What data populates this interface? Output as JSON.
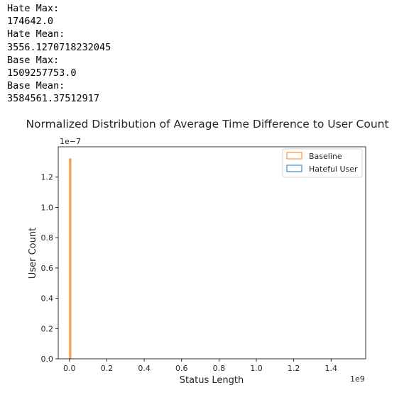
{
  "output": {
    "lines": [
      "Hate Max:",
      "174642.0",
      "Hate Mean:",
      "3556.1270718232045",
      "Base Max:",
      "1509257753.0",
      "Base Mean:",
      "3584561.37512917"
    ]
  },
  "chart_data": {
    "type": "histogram",
    "title": "Normalized Distribution of Average Time Difference to User Count",
    "xlabel": "Status Length",
    "ylabel": "User Count",
    "x_offset_label": "1e9",
    "y_offset_label": "1e−7",
    "xlim": [
      -0.06,
      1.585
    ],
    "ylim": [
      0,
      1.4
    ],
    "x_ticks": [
      0.0,
      0.2,
      0.4,
      0.6,
      0.8,
      1.0,
      1.2,
      1.4
    ],
    "x_tick_labels": [
      "0.0",
      "0.2",
      "0.4",
      "0.6",
      "0.8",
      "1.0",
      "1.2",
      "1.4"
    ],
    "y_ticks": [
      0.0,
      0.2,
      0.4,
      0.6,
      0.8,
      1.0,
      1.2
    ],
    "y_tick_labels": [
      "0.0",
      "0.2",
      "0.4",
      "0.6",
      "0.8",
      "1.0",
      "1.2"
    ],
    "legend_position": "top-right",
    "series": [
      {
        "name": "Baseline",
        "color": "#ff7f0e",
        "histtype": "step",
        "bins": [
          {
            "x_start": 0.0,
            "x_end": 0.0075,
            "height": 1.32
          }
        ]
      },
      {
        "name": "Hateful User",
        "color": "#1f77b4",
        "histtype": "step",
        "bins": [
          {
            "x_start": 0.0,
            "x_end": 0.0002,
            "height": 0.0
          }
        ]
      }
    ]
  }
}
